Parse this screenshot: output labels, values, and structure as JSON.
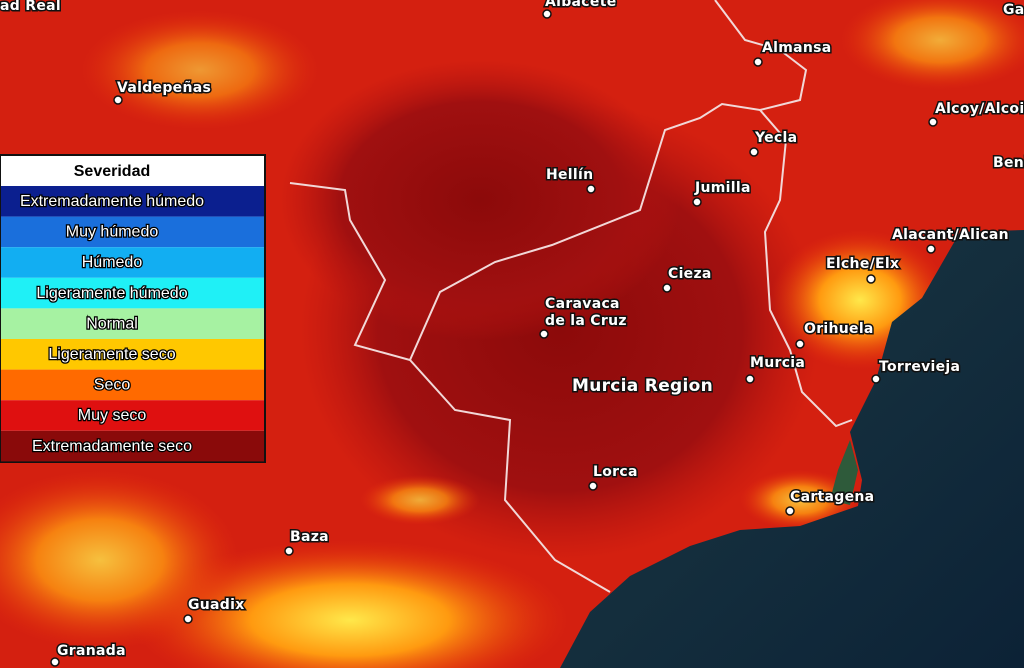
{
  "legend": {
    "title": "Severidad",
    "items": [
      {
        "label": "Extremadamente húmedo",
        "color": "#0b1f8f"
      },
      {
        "label": "Muy húmedo",
        "color": "#1a6fdc"
      },
      {
        "label": "Húmedo",
        "color": "#12aef2"
      },
      {
        "label": "Ligeramente húmedo",
        "color": "#1ff0f6"
      },
      {
        "label": "Normal",
        "color": "#a6f2a2"
      },
      {
        "label": "Ligeramente seco",
        "color": "#ffc800"
      },
      {
        "label": "Seco",
        "color": "#ff6a00"
      },
      {
        "label": "Muy seco",
        "color": "#df1010"
      },
      {
        "label": "Extremadamente seco",
        "color": "#8a0a0a"
      }
    ]
  },
  "region_label": "Murcia Region",
  "places": [
    {
      "label": "ad Real"
    },
    {
      "label": "Albacete"
    },
    {
      "label": "Valdepeñas"
    },
    {
      "label": "Almansa"
    },
    {
      "label": "Alcoy/Alcoi"
    },
    {
      "label": "Ga"
    },
    {
      "label": "Yecla"
    },
    {
      "label": "Hellín"
    },
    {
      "label": "Jumilla"
    },
    {
      "label": "Beni"
    },
    {
      "label": "Alacant/Alican"
    },
    {
      "label": "Elche/Elx"
    },
    {
      "label": "Cieza"
    },
    {
      "label": [
        "Caravaca",
        "de la Cruz"
      ]
    },
    {
      "label": "Orihuela"
    },
    {
      "label": "Murcia"
    },
    {
      "label": "Torrevieja"
    },
    {
      "label": "Lorca"
    },
    {
      "label": "Cartagena"
    },
    {
      "label": "Baza"
    },
    {
      "label": "Guadix"
    },
    {
      "label": "Granada"
    }
  ]
}
